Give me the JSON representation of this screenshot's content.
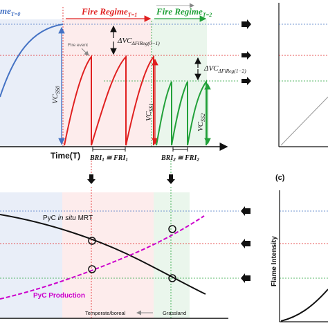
{
  "top": {
    "regime0_label": "me",
    "regime0_sub": "T=0",
    "regime1_label": "Fire Regime",
    "regime1_sub": "T=1",
    "regime2_label": "Fire Regime",
    "regime2_sub": "T=2",
    "fire_event_label": "Fire event",
    "dv1_label": "ΔVC",
    "dv1_sub": "ΔFiReg(0−1)",
    "dv2_label": "ΔVC",
    "dv2_sub": "ΔFiReg(1−2)",
    "vcss0_label": "VC",
    "vcss0_sub": "SS0",
    "vcss1_label": "VC",
    "vcss1_sub": "SS1",
    "vcss2_label": "VC",
    "vcss2_sub": "SS2",
    "time_axis_label": "Time(T)",
    "bri1_label": "BRI",
    "bri1_sub": "1",
    "bri1_eq": " ≅ FRI",
    "bri1_sub2": "1",
    "bri2_label": "BRI",
    "bri2_sub": "2",
    "bri2_eq": " ≅ FRI",
    "bri2_sub2": "2"
  },
  "bottom": {
    "mrt_label_a": "PyC ",
    "mrt_label_b": "in situ",
    "mrt_label_c": " MRT",
    "production_label": "PyC Production",
    "temperate_label": "Temperate/boreal",
    "grassland_label": "Grassland",
    "panel_c_label": "(c)",
    "flame_intensity_label": "Flame Intensity"
  },
  "colors": {
    "blue_curve": "#4472c4",
    "red_curve": "#e02020",
    "green_curve": "#22a13a",
    "magenta": "#cc00cc",
    "blue_zone": "#e9eef8",
    "red_zone": "#fdecec",
    "green_zone": "#eaf6ec"
  }
}
